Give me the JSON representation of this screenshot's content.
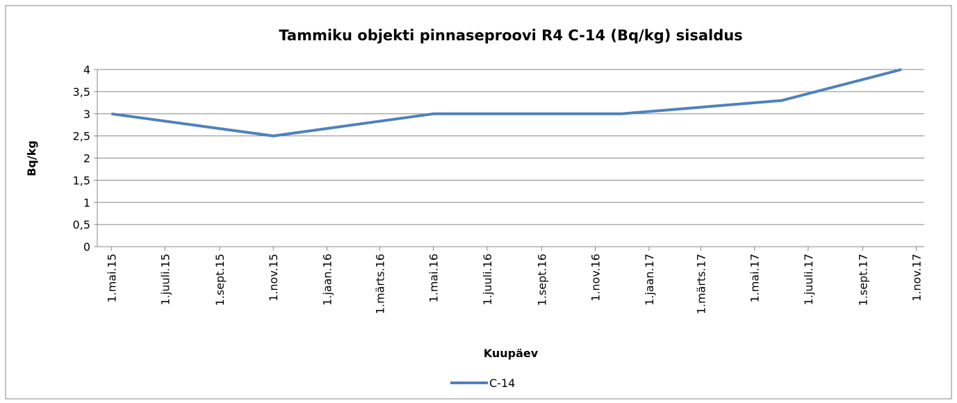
{
  "chart_data": {
    "type": "line",
    "title": "Tammiku objekti pinnaseproovi R4 C-14 (Bq/kg) sisaldus",
    "x_label": "Kuupäev",
    "y_label": "Bq/kg",
    "x": [
      "2015-05-01",
      "2015-11-01",
      "2016-05-01",
      "2016-12-01",
      "2017-06-01",
      "2017-10-15"
    ],
    "series": [
      {
        "name": "C-14",
        "color": "#4f81bd",
        "values": [
          3,
          2.5,
          3,
          3,
          3.3,
          4
        ]
      }
    ],
    "xlim": [
      "2015-04-15",
      "2017-11-10"
    ],
    "xticks": [
      {
        "value": "2015-05-01",
        "label": "1.mai.15"
      },
      {
        "value": "2015-07-01",
        "label": "1.juuli.15"
      },
      {
        "value": "2015-09-01",
        "label": "1.sept.15"
      },
      {
        "value": "2015-11-01",
        "label": "1.nov.15"
      },
      {
        "value": "2016-01-01",
        "label": "1.jaan.16"
      },
      {
        "value": "2016-03-01",
        "label": "1.märts.16"
      },
      {
        "value": "2016-05-01",
        "label": "1.mai.16"
      },
      {
        "value": "2016-07-01",
        "label": "1.juuli.16"
      },
      {
        "value": "2016-09-01",
        "label": "1.sept.16"
      },
      {
        "value": "2016-11-01",
        "label": "1.nov.16"
      },
      {
        "value": "2017-01-01",
        "label": "1.jaan.17"
      },
      {
        "value": "2017-03-01",
        "label": "1.märts.17"
      },
      {
        "value": "2017-05-01",
        "label": "1.mai.17"
      },
      {
        "value": "2017-07-01",
        "label": "1.juuli.17"
      },
      {
        "value": "2017-09-01",
        "label": "1.sept.17"
      },
      {
        "value": "2017-11-01",
        "label": "1.nov.17"
      }
    ],
    "ylim": [
      0,
      4
    ],
    "yticks": [
      0,
      {
        "value": 0.5,
        "label": "0,5"
      },
      1,
      {
        "value": 1.5,
        "label": "1,5"
      },
      2,
      {
        "value": 2.5,
        "label": "2,5"
      },
      3,
      {
        "value": 3.5,
        "label": "3,5"
      },
      4
    ],
    "grid": true,
    "legend": "bottom"
  }
}
